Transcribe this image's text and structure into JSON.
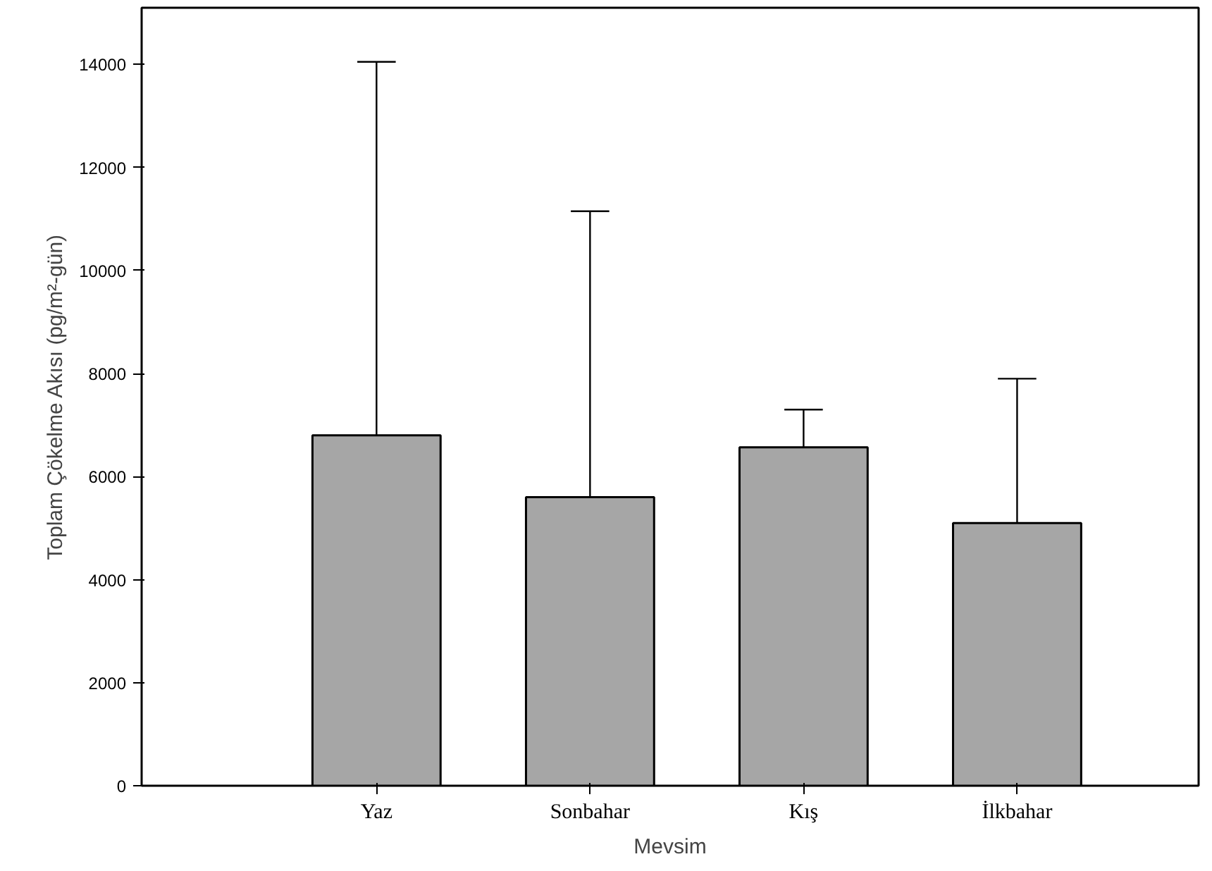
{
  "chart_data": {
    "type": "bar",
    "xlabel": "Mevsim",
    "ylabel": "Toplam Çökelme Akısı (pg/m²-gün)",
    "categories": [
      "Yaz",
      "Sonbahar",
      "Kış",
      "İlkbahar"
    ],
    "values": [
      6800,
      5600,
      6570,
      5100
    ],
    "errors": [
      [
        6800,
        14050
      ],
      [
        5600,
        11150
      ],
      [
        6570,
        7300
      ],
      [
        5100,
        7900
      ]
    ],
    "color": "#a6a6a6",
    "ylim": [
      0,
      15100
    ],
    "yticks": [
      0,
      2000,
      4000,
      6000,
      8000,
      10000,
      12000,
      14000
    ],
    "grid": false
  }
}
